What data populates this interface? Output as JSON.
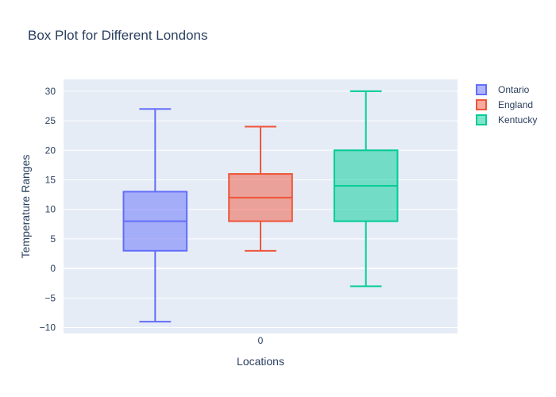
{
  "chart_data": {
    "type": "box",
    "title": "Box Plot for Different Londons",
    "xlabel": "Locations",
    "ylabel": "Temperature Ranges",
    "categories": [
      "0"
    ],
    "ylim": [
      -11,
      32
    ],
    "yticks": [
      -10,
      -5,
      0,
      5,
      10,
      15,
      20,
      25,
      30
    ],
    "ytick_labels": [
      "−10",
      "−5",
      "0",
      "5",
      "10",
      "15",
      "20",
      "25",
      "30"
    ],
    "grid": true,
    "legend_position": "top-right",
    "series": [
      {
        "name": "Ontario",
        "min": -9,
        "q1": 3,
        "median": 8,
        "q3": 13,
        "max": 27,
        "color": "#636efa"
      },
      {
        "name": "England",
        "min": 3,
        "q1": 8,
        "median": 12,
        "q3": 16,
        "max": 24,
        "color": "#ef553b"
      },
      {
        "name": "Kentucky",
        "min": -3,
        "q1": 8,
        "median": 14,
        "q3": 20,
        "max": 30,
        "color": "#00cc96"
      }
    ]
  },
  "colors": {
    "plot_background": "#e5ecf6",
    "gridline": "#ffffff",
    "text": "#2a3f5f"
  }
}
